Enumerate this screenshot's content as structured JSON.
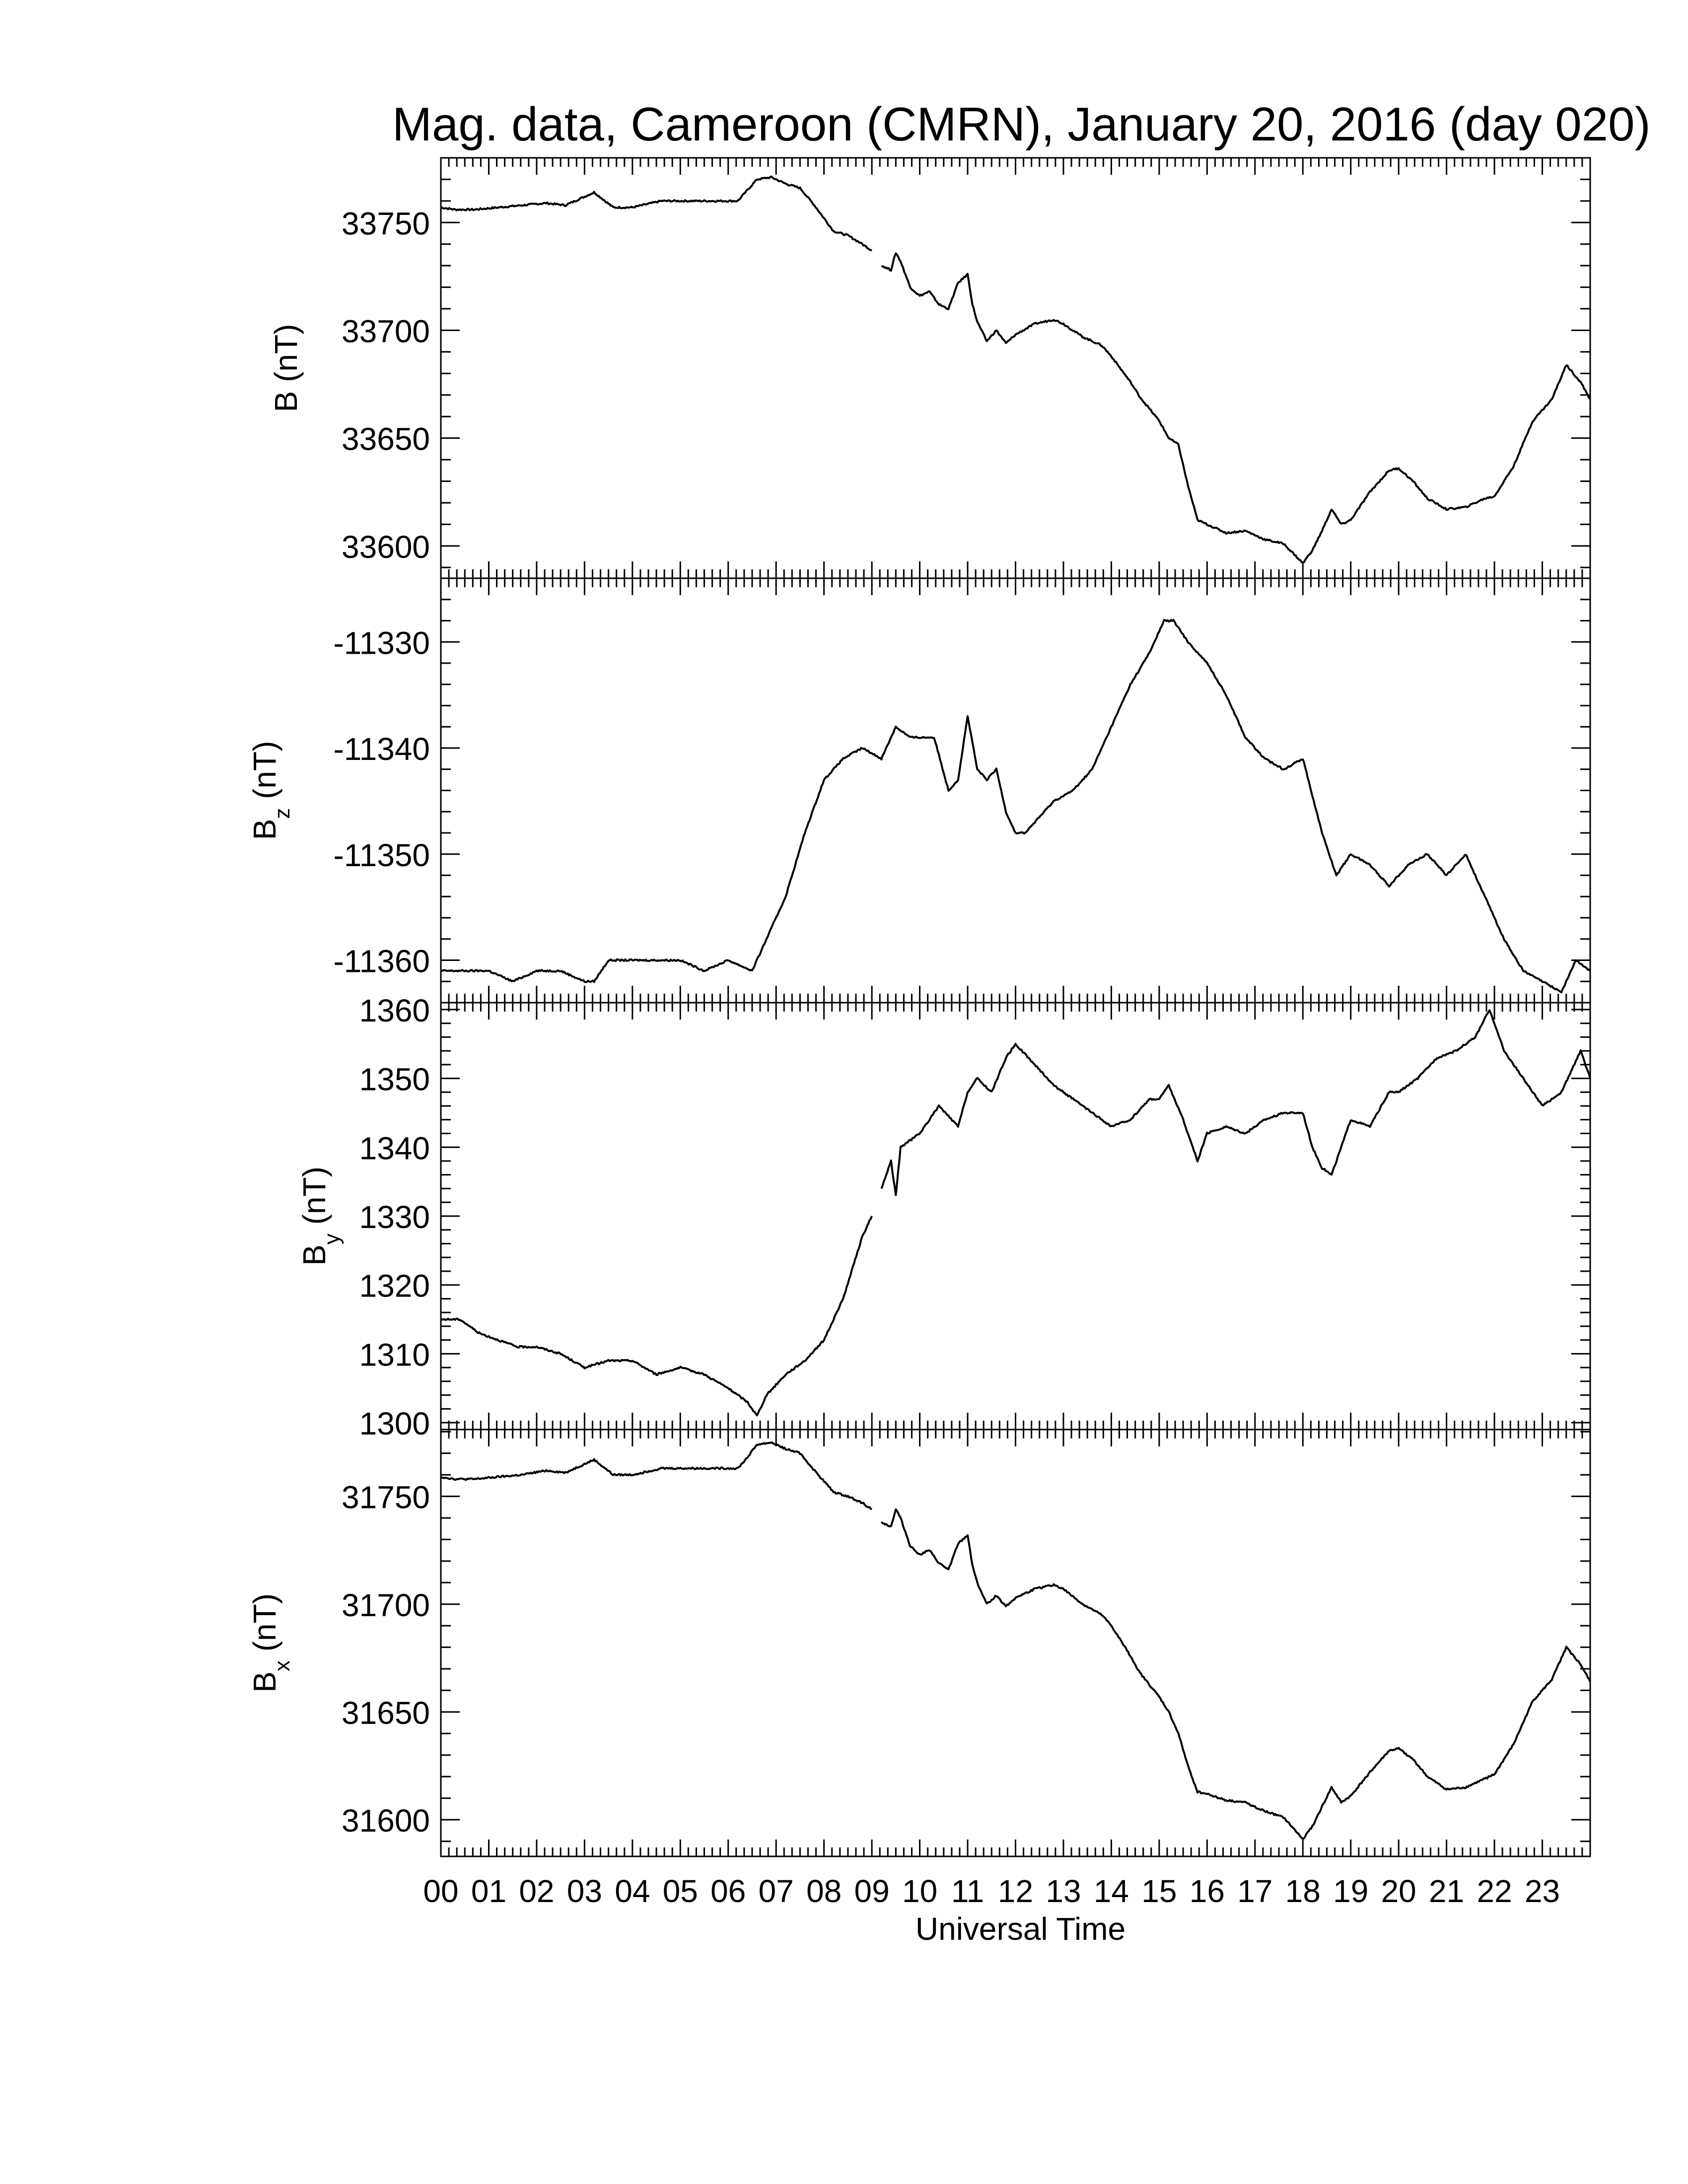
{
  "title": "Mag. data, Cameroon (CMRN), January 20, 2016 (day 020)",
  "colors": {
    "line": "#000000",
    "frame": "#000000",
    "background": "#ffffff"
  },
  "chart_data": [
    {
      "type": "line",
      "panel": "B",
      "ylabel": "B (nT)",
      "ylabel_main": "B",
      "ylabel_sub": "",
      "ylim": [
        33585,
        33780
      ],
      "yticks": [
        33600,
        33650,
        33700,
        33750
      ],
      "xlim": [
        0,
        24
      ],
      "series": [
        {
          "x": [
            0,
            0.3,
            0.7,
            1.2,
            1.7,
            2.2,
            2.6,
            3.0,
            3.2,
            3.6,
            4.0,
            4.6,
            5.2,
            5.8,
            6.2,
            6.4,
            6.6,
            6.9,
            7.2,
            7.5,
            7.8,
            8.0,
            8.2,
            8.5,
            8.8,
            9.0
          ],
          "y": [
            33757,
            33756,
            33756,
            33757,
            33758,
            33759,
            33758,
            33762,
            33764,
            33757,
            33757,
            33760,
            33760,
            33760,
            33760,
            33765,
            33770,
            33771,
            33768,
            33766,
            33758,
            33752,
            33746,
            33744,
            33740,
            33737
          ]
        },
        {
          "x": [
            9.2,
            9.4,
            9.5,
            9.6,
            9.8,
            10.0,
            10.2,
            10.4,
            10.6,
            10.8,
            11.0,
            11.1,
            11.2,
            11.4,
            11.6,
            11.8,
            12.0,
            12.4,
            12.8,
            13.0,
            13.4,
            13.8,
            14.0,
            14.4,
            14.6,
            15.0,
            15.2,
            15.4,
            15.6,
            15.8,
            16.0,
            16.4,
            16.8,
            17.2,
            17.6,
            18.0,
            18.2,
            18.4,
            18.6,
            18.8,
            19.0,
            19.4,
            19.8,
            20.0,
            20.3,
            20.6,
            21.0,
            21.4,
            21.8,
            22.0,
            22.4,
            22.8,
            23.2,
            23.5,
            23.8,
            24.0
          ],
          "y": [
            33730,
            33728,
            33736,
            33732,
            33720,
            33716,
            33718,
            33712,
            33710,
            33722,
            33726,
            33712,
            33704,
            33695,
            33700,
            33694,
            33698,
            33703,
            33705,
            33703,
            33697,
            33693,
            33688,
            33676,
            33669,
            33658,
            33650,
            33647,
            33628,
            33612,
            33610,
            33606,
            33607,
            33603,
            33601,
            33592,
            33598,
            33607,
            33617,
            33610,
            33612,
            33625,
            33635,
            33636,
            33630,
            33622,
            33617,
            33618,
            33622,
            33623,
            33637,
            33658,
            33668,
            33684,
            33676,
            33668
          ]
        }
      ]
    },
    {
      "type": "line",
      "panel": "Bz",
      "ylabel": "Bz (nT)",
      "ylabel_main": "B",
      "ylabel_sub": "z",
      "ylim": [
        -11364,
        -11324
      ],
      "yticks": [
        -11330,
        -11340,
        -11350,
        -11360
      ],
      "xlim": [
        0,
        24
      ],
      "series": [
        {
          "x": [
            0,
            0.5,
            1.0,
            1.5,
            2.0,
            2.5,
            3.0,
            3.2,
            3.5,
            4.0,
            4.5,
            5.0,
            5.5,
            6.0,
            6.5,
            6.8,
            7.2,
            7.6,
            8.0,
            8.4,
            8.8,
            9.2,
            9.5,
            9.8,
            10.0,
            10.3,
            10.6,
            10.8,
            11.0,
            11.2,
            11.4,
            11.6,
            11.8,
            12.0,
            12.2,
            12.4,
            12.8,
            13.2,
            13.6,
            14.0,
            14.4,
            14.8,
            15.1,
            15.3,
            15.6,
            16.0,
            16.4,
            16.8,
            17.2,
            17.6,
            18.0,
            18.4,
            18.7,
            19.0,
            19.4,
            19.8,
            20.2,
            20.6,
            21.0,
            21.4,
            21.8,
            22.2,
            22.6,
            23.0,
            23.4,
            23.7,
            24.0
          ],
          "y": [
            -11361,
            -11361,
            -11361,
            -11362,
            -11361,
            -11361,
            -11362,
            -11362,
            -11360,
            -11360,
            -11360,
            -11360,
            -11361,
            -11360,
            -11361,
            -11358,
            -11354,
            -11348,
            -11343,
            -11341,
            -11340,
            -11341,
            -11338,
            -11339,
            -11339,
            -11339,
            -11344,
            -11343,
            -11337,
            -11342,
            -11343,
            -11342,
            -11346,
            -11348,
            -11348,
            -11347,
            -11345,
            -11344,
            -11342,
            -11338,
            -11334,
            -11331,
            -11328,
            -11328,
            -11330,
            -11332,
            -11335,
            -11339,
            -11341,
            -11342,
            -11341,
            -11348,
            -11352,
            -11350,
            -11351,
            -11353,
            -11351,
            -11350,
            -11352,
            -11350,
            -11354,
            -11358,
            -11361,
            -11362,
            -11363,
            -11360,
            -11361
          ]
        }
      ]
    },
    {
      "type": "line",
      "panel": "By",
      "ylabel": "By (nT)",
      "ylabel_main": "B",
      "ylabel_sub": "y",
      "ylim": [
        1299,
        1361
      ],
      "yticks": [
        1300,
        1310,
        1320,
        1330,
        1340,
        1350,
        1360
      ],
      "xlim": [
        0,
        24
      ],
      "series": [
        {
          "x": [
            0,
            0.4,
            0.8,
            1.2,
            1.6,
            2.0,
            2.5,
            3.0,
            3.5,
            4.0,
            4.5,
            5.0,
            5.5,
            6.0,
            6.4,
            6.6,
            6.8,
            7.2,
            7.6,
            8.0,
            8.4,
            8.8,
            9.0
          ],
          "y": [
            1315,
            1315,
            1313,
            1312,
            1311,
            1311,
            1310,
            1308,
            1309,
            1309,
            1307,
            1308,
            1307,
            1305,
            1303,
            1301,
            1304,
            1307,
            1309,
            1312,
            1318,
            1327,
            1330
          ]
        },
        {
          "x": [
            9.2,
            9.4,
            9.5,
            9.6,
            9.8,
            10.0,
            10.4,
            10.8,
            11.0,
            11.2,
            11.5,
            11.8,
            12.0,
            12.4,
            12.8,
            13.2,
            13.6,
            14.0,
            14.4,
            14.8,
            15.0,
            15.2,
            15.5,
            15.8,
            16.0,
            16.4,
            16.8,
            17.2,
            17.6,
            18.0,
            18.2,
            18.4,
            18.6,
            18.8,
            19.0,
            19.4,
            19.8,
            20.0,
            20.4,
            20.8,
            21.2,
            21.6,
            21.9,
            22.2,
            22.6,
            23.0,
            23.4,
            23.8,
            24.0
          ],
          "y": [
            1334,
            1338,
            1333,
            1340,
            1341,
            1342,
            1346,
            1343,
            1348,
            1350,
            1348,
            1353,
            1355,
            1352,
            1349,
            1347,
            1345,
            1343,
            1344,
            1347,
            1347,
            1349,
            1344,
            1338,
            1342,
            1343,
            1342,
            1344,
            1345,
            1345,
            1340,
            1337,
            1336,
            1340,
            1344,
            1343,
            1348,
            1348,
            1350,
            1353,
            1354,
            1356,
            1360,
            1354,
            1350,
            1346,
            1348,
            1354,
            1350
          ]
        }
      ]
    },
    {
      "type": "line",
      "panel": "Bx",
      "ylabel": "Bx (nT)",
      "ylabel_main": "B",
      "ylabel_sub": "x",
      "ylim": [
        31583,
        31781
      ],
      "yticks": [
        31600,
        31650,
        31700,
        31750
      ],
      "xlim": [
        0,
        24
      ],
      "series": [
        {
          "x": [
            0,
            0.3,
            0.7,
            1.2,
            1.7,
            2.2,
            2.6,
            3.0,
            3.2,
            3.6,
            4.0,
            4.6,
            5.2,
            5.8,
            6.2,
            6.4,
            6.6,
            6.9,
            7.2,
            7.5,
            7.8,
            8.0,
            8.2,
            8.5,
            8.8,
            9.0
          ],
          "y": [
            31759,
            31758,
            31758,
            31759,
            31760,
            31762,
            31761,
            31765,
            31767,
            31760,
            31760,
            31763,
            31763,
            31763,
            31763,
            31768,
            31774,
            31775,
            31772,
            31770,
            31762,
            31757,
            31752,
            31750,
            31747,
            31744
          ]
        },
        {
          "x": [
            9.2,
            9.4,
            9.5,
            9.6,
            9.8,
            10.0,
            10.2,
            10.4,
            10.6,
            10.8,
            11.0,
            11.1,
            11.2,
            11.4,
            11.6,
            11.8,
            12.0,
            12.4,
            12.8,
            13.0,
            13.4,
            13.8,
            14.0,
            14.4,
            14.6,
            15.0,
            15.2,
            15.4,
            15.6,
            15.8,
            16.0,
            16.4,
            16.8,
            17.2,
            17.6,
            18.0,
            18.2,
            18.4,
            18.6,
            18.8,
            19.0,
            19.4,
            19.8,
            20.0,
            20.3,
            20.6,
            21.0,
            21.4,
            21.8,
            22.0,
            22.4,
            22.8,
            23.2,
            23.5,
            23.8,
            24.0
          ],
          "y": [
            31738,
            31736,
            31744,
            31740,
            31727,
            31723,
            31725,
            31719,
            31716,
            31728,
            31732,
            31718,
            31710,
            31700,
            31704,
            31699,
            31703,
            31707,
            31709,
            31707,
            31700,
            31695,
            31690,
            31676,
            31668,
            31657,
            31650,
            31640,
            31625,
            31613,
            31612,
            31609,
            31608,
            31604,
            31601,
            31591,
            31597,
            31606,
            31615,
            31608,
            31611,
            31622,
            31632,
            31633,
            31628,
            31620,
            31614,
            31615,
            31619,
            31621,
            31635,
            31655,
            31665,
            31680,
            31672,
            31664
          ]
        }
      ]
    }
  ],
  "x_axis": {
    "label": "Universal Time",
    "ticks": [
      "00",
      "01",
      "02",
      "03",
      "04",
      "05",
      "06",
      "07",
      "08",
      "09",
      "10",
      "11",
      "12",
      "13",
      "14",
      "15",
      "16",
      "17",
      "18",
      "19",
      "20",
      "21",
      "22",
      "23"
    ]
  }
}
